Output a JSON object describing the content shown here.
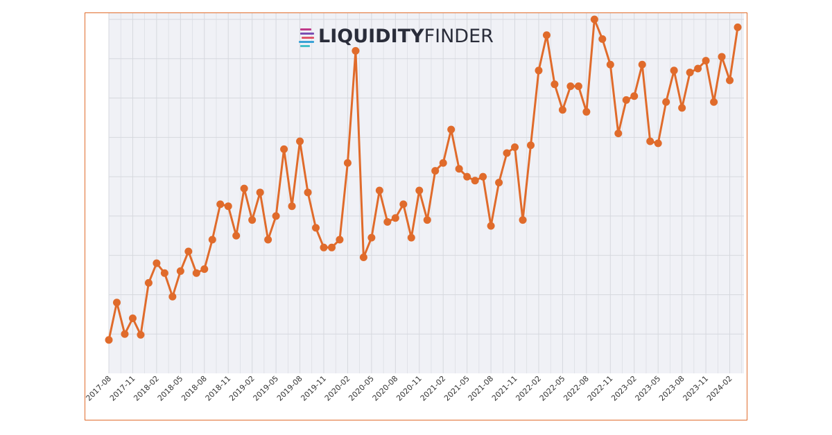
{
  "logo": {
    "brand_bold": "LIQUIDITY",
    "brand_light": "FINDER",
    "icon": "stacked-bars-logo-icon"
  },
  "colors": {
    "line": "#e06b2b",
    "marker": "#e06b2b",
    "plot_bg": "#f0f1f6",
    "grid": "#d6d8de",
    "frame": "#e06b2b",
    "logo_text": "#2a2d3a"
  },
  "chart_data": {
    "type": "line",
    "title": "",
    "xlabel": "",
    "ylabel": "",
    "grid": true,
    "x_tick_labels": [
      "2017-08",
      "2017-11",
      "2018-02",
      "2018-05",
      "2018-08",
      "2018-11",
      "2019-02",
      "2019-05",
      "2019-08",
      "2019-11",
      "2020-02",
      "2020-05",
      "2020-08",
      "2020-11",
      "2021-02",
      "2021-05",
      "2021-08",
      "2021-11",
      "2022-02",
      "2022-05",
      "2022-08",
      "2022-11",
      "2023-02",
      "2023-05",
      "2023-08",
      "2023-11",
      "2024-02"
    ],
    "ylim": [
      0,
      9
    ],
    "y_gridlines": [
      1,
      2,
      3,
      4,
      5,
      6,
      7,
      8,
      9
    ],
    "series": [
      {
        "name": "",
        "x": [
          "2017-08",
          "2017-09",
          "2017-10",
          "2017-11",
          "2017-12",
          "2018-01",
          "2018-02",
          "2018-03",
          "2018-04",
          "2018-05",
          "2018-06",
          "2018-07",
          "2018-08",
          "2018-09",
          "2018-10",
          "2018-11",
          "2018-12",
          "2019-01",
          "2019-02",
          "2019-03",
          "2019-04",
          "2019-05",
          "2019-06",
          "2019-07",
          "2019-08",
          "2019-09",
          "2019-10",
          "2019-11",
          "2019-12",
          "2020-01",
          "2020-02",
          "2020-03",
          "2020-04",
          "2020-05",
          "2020-06",
          "2020-07",
          "2020-08",
          "2020-09",
          "2020-10",
          "2020-11",
          "2020-12",
          "2021-01",
          "2021-02",
          "2021-03",
          "2021-04",
          "2021-05",
          "2021-06",
          "2021-07",
          "2021-08",
          "2021-09",
          "2021-10",
          "2021-11",
          "2021-12",
          "2022-01",
          "2022-02",
          "2022-03",
          "2022-04",
          "2022-05",
          "2022-06",
          "2022-07",
          "2022-08",
          "2022-09",
          "2022-10",
          "2022-11",
          "2022-12",
          "2023-01",
          "2023-02",
          "2023-03",
          "2023-04",
          "2023-05",
          "2023-06",
          "2023-07",
          "2023-08",
          "2023-09",
          "2023-10",
          "2023-11",
          "2023-12",
          "2024-01",
          "2024-02",
          "2024-03"
        ],
        "values": [
          0.85,
          1.8,
          1.0,
          1.4,
          0.98,
          2.3,
          2.8,
          2.55,
          1.95,
          2.6,
          3.1,
          2.55,
          2.65,
          3.4,
          4.3,
          4.25,
          3.5,
          4.7,
          3.9,
          4.6,
          3.4,
          4.0,
          5.7,
          4.25,
          5.9,
          4.6,
          3.7,
          3.2,
          3.2,
          3.4,
          5.35,
          8.2,
          2.95,
          3.45,
          4.65,
          3.85,
          3.95,
          4.3,
          3.45,
          4.65,
          3.9,
          5.15,
          5.35,
          6.2,
          5.2,
          5.0,
          4.9,
          5.0,
          3.75,
          4.85,
          5.6,
          5.75,
          3.9,
          5.8,
          7.7,
          8.6,
          7.35,
          6.7,
          7.3,
          7.3,
          6.65,
          9.0,
          8.5,
          7.85,
          6.1,
          6.95,
          7.05,
          7.85,
          5.9,
          5.85,
          6.9,
          7.7,
          6.75,
          7.65,
          7.75,
          7.95,
          6.9,
          8.05,
          7.45,
          8.8
        ]
      }
    ]
  }
}
